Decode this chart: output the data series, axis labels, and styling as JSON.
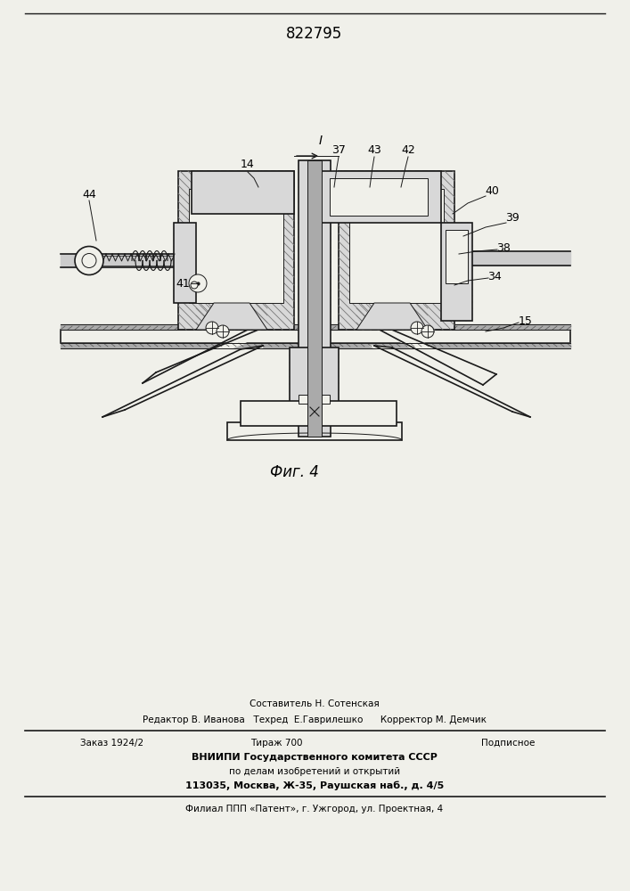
{
  "patent_number": "822795",
  "fig_label": "Фиг. 4",
  "bg_color": "#f0f0ea",
  "footer": {
    "sestavitel": "Составитель Н. Сотенская",
    "redaktor": "Редактор В. Иванова   Техред  Е.Гаврилешко      Корректор М. Демчик",
    "zakaz": "Заказ 1924/2",
    "tirazh": "Тираж 700",
    "podpisnoe": "Подписное",
    "vniiipi": "ВНИИПИ Государственного комитета СССР",
    "po_delam": "по делам изобретений и открытий",
    "address": "113035, Москва, Ж-35, Раушская наб., д. 4/5",
    "filial": "Филиал ППП «Патент», г. Ужгород, ул. Проектная, 4"
  }
}
